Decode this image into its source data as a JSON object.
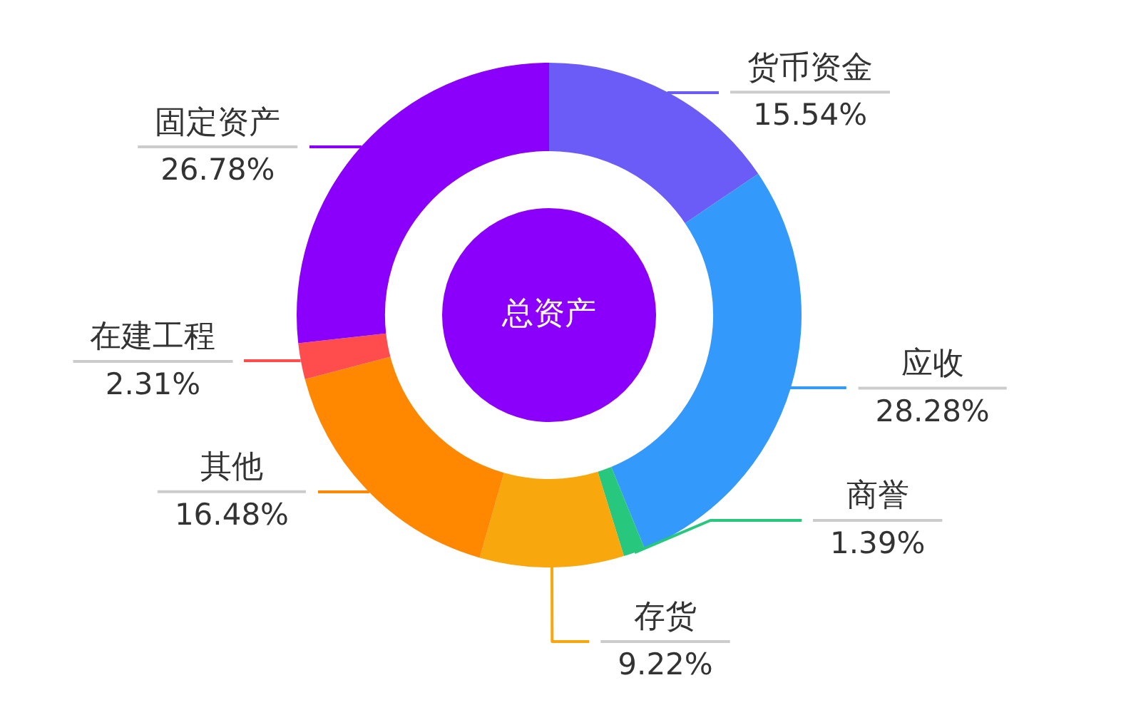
{
  "chart_data": {
    "type": "donut",
    "title": "总资产",
    "categories": [
      "货币资金",
      "应收",
      "商誉",
      "存货",
      "其他",
      "在建工程",
      "固定资产"
    ],
    "values": [
      15.54,
      28.28,
      1.39,
      9.22,
      16.48,
      2.31,
      26.78
    ],
    "colors": [
      "#6b5cf7",
      "#3399fa",
      "#27c77d",
      "#f8a70c",
      "#ff8800",
      "#ff4d4d",
      "#8b00fa"
    ],
    "value_labels": [
      "15.54%",
      "28.28%",
      "1.39%",
      "9.22%",
      "16.48%",
      "2.31%",
      "26.78%"
    ]
  }
}
